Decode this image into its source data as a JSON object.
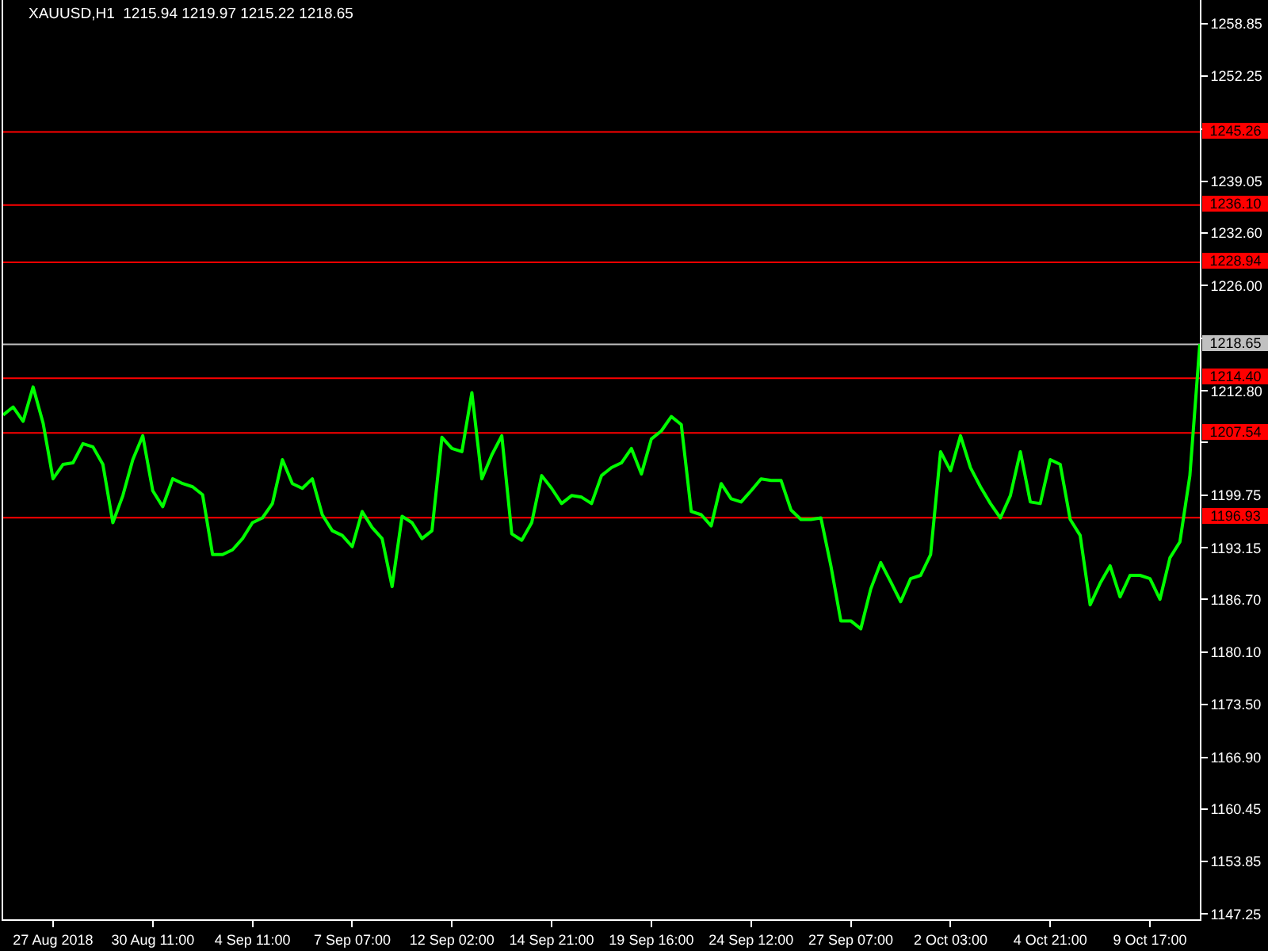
{
  "chart_data": {
    "type": "line",
    "title": "XAUUSD,H1  1215.94 1219.97 1215.22 1218.65",
    "categories": [
      null,
      null,
      null,
      null,
      null,
      "27 Aug 2018",
      null,
      null,
      null,
      null,
      null,
      null,
      null,
      null,
      null,
      "30 Aug 11:00",
      null,
      null,
      null,
      null,
      null,
      null,
      null,
      null,
      null,
      "4 Sep 11:00",
      null,
      null,
      null,
      null,
      null,
      null,
      null,
      null,
      null,
      "7 Sep 07:00",
      null,
      null,
      null,
      null,
      null,
      null,
      null,
      null,
      null,
      "12 Sep 02:00",
      null,
      null,
      null,
      null,
      null,
      null,
      null,
      null,
      null,
      "14 Sep 21:00",
      null,
      null,
      null,
      null,
      null,
      null,
      null,
      null,
      null,
      "19 Sep 16:00",
      null,
      null,
      null,
      null,
      null,
      null,
      null,
      null,
      null,
      "24 Sep 12:00",
      null,
      null,
      null,
      null,
      null,
      null,
      null,
      null,
      null,
      "27 Sep 07:00",
      null,
      null,
      null,
      null,
      null,
      null,
      null,
      null,
      null,
      "2 Oct 03:00",
      null,
      null,
      null,
      null,
      null,
      null,
      null,
      null,
      null,
      "4 Oct 21:00",
      null,
      null,
      null,
      null,
      null,
      null,
      null,
      null,
      null,
      "9 Oct 17:00",
      null,
      null,
      null,
      null,
      null
    ],
    "series": [
      {
        "color": "#00ff00",
        "values": [
          1209.8,
          1210.8,
          1209.0,
          1213.3,
          1208.8,
          1201.8,
          1203.6,
          1203.8,
          1206.2,
          1205.8,
          1203.6,
          1196.3,
          1199.7,
          1204.2,
          1207.2,
          1200.3,
          1198.3,
          1201.8,
          1201.2,
          1200.8,
          1199.8,
          1192.3,
          1192.3,
          1192.9,
          1194.3,
          1196.3,
          1196.9,
          1198.7,
          1204.2,
          1201.2,
          1200.6,
          1201.8,
          1197.3,
          1195.3,
          1194.7,
          1193.3,
          1197.7,
          1195.7,
          1194.3,
          1188.3,
          1197.1,
          1196.3,
          1194.3,
          1195.3,
          1207.0,
          1205.6,
          1205.2,
          1212.6,
          1201.8,
          1204.8,
          1207.2,
          1194.9,
          1194.1,
          1196.3,
          1202.2,
          1200.6,
          1198.7,
          1199.7,
          1199.5,
          1198.7,
          1202.2,
          1203.2,
          1203.8,
          1205.6,
          1202.4,
          1206.8,
          1207.8,
          1209.6,
          1208.6,
          1197.7,
          1197.3,
          1195.9,
          1201.2,
          1199.3,
          1198.9,
          1200.3,
          1201.8,
          1201.6,
          1201.6,
          1197.9,
          1196.7,
          1196.7,
          1196.9,
          1190.9,
          1184.0,
          1184.0,
          1183.0,
          1188.0,
          1191.3,
          1188.9,
          1186.4,
          1189.3,
          1189.7,
          1192.3,
          1205.2,
          1202.8,
          1207.2,
          1203.2,
          1200.8,
          1198.7,
          1196.9,
          1199.7,
          1205.2,
          1198.9,
          1198.7,
          1204.2,
          1203.6,
          1196.7,
          1194.7,
          1186.0,
          1188.7,
          1190.9,
          1187.0,
          1189.7,
          1189.7,
          1189.3,
          1186.7,
          1191.9,
          1193.9,
          1202.2,
          1218.7
        ]
      }
    ],
    "ylim": [
      1146.6,
      1261.8
    ],
    "yticks": [
      1258.85,
      1252.25,
      {
        "value": 1245.65,
        "label": null
      },
      1239.05,
      {
        "value": 1232.6,
        "label": "1232.60"
      },
      {
        "value": 1226.0,
        "label": "1226.00"
      },
      {
        "value": 1219.4,
        "label": null
      },
      {
        "value": 1212.8,
        "label": "1212.80"
      },
      {
        "value": 1206.35,
        "label": null
      },
      1199.75,
      1193.15,
      {
        "value": 1186.7,
        "label": "1186.70"
      },
      {
        "value": 1180.1,
        "label": "1180.10"
      },
      {
        "value": 1173.5,
        "label": "1173.50"
      },
      {
        "value": 1166.9,
        "label": "1166.90"
      },
      1160.45,
      1153.85,
      1147.25
    ],
    "ref_lines": [
      {
        "axis": "y",
        "value": 1245.26,
        "label": "1245.26",
        "color": "#ff0000"
      },
      {
        "axis": "y",
        "value": 1236.1,
        "label": "1236.10",
        "color": "#ff0000"
      },
      {
        "axis": "y",
        "value": 1228.94,
        "label": "1228.94",
        "color": "#ff0000"
      },
      {
        "axis": "y",
        "value": 1218.65,
        "label": "1218.65",
        "color": "#c0c0c0"
      },
      {
        "axis": "y",
        "value": 1214.4,
        "label": "1214.40",
        "color": "#ff0000"
      },
      {
        "axis": "y",
        "value": 1207.54,
        "label": "1207.54",
        "color": "#ff0000"
      },
      {
        "axis": "y",
        "value": 1196.93,
        "label": "1196.93",
        "color": "#ff0000"
      }
    ],
    "grid": false,
    "marker": "none",
    "line_style": "solid"
  }
}
